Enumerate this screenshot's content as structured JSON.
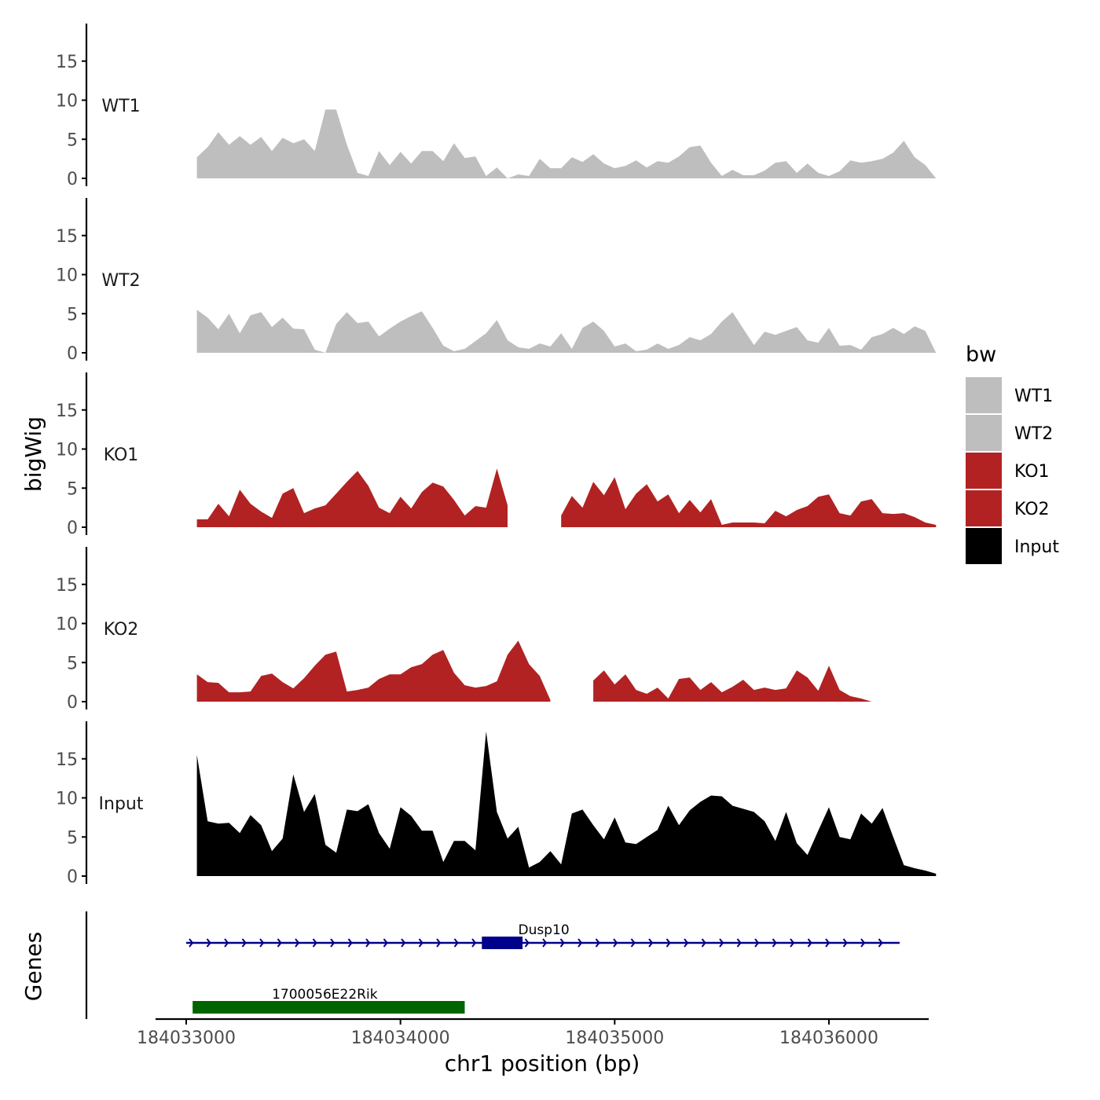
{
  "chart_data": {
    "type": "area",
    "ylabel": "bigWig",
    "genes_label": "Genes",
    "xlabel": "chr1 position (bp)",
    "xlim": [
      184032990,
      184036470
    ],
    "x_ticks": [
      184033000,
      184034000,
      184035000,
      184036000
    ],
    "x_tick_labels": [
      "184033000",
      "184034000",
      "184035000",
      "184036000"
    ],
    "ylim": [
      0,
      19.5
    ],
    "y_ticks": [
      0,
      5,
      10,
      15
    ],
    "y_tick_labels": [
      "0",
      "5",
      "10",
      "15"
    ],
    "legend": {
      "title": "bw",
      "position": "right",
      "entries": [
        {
          "label": "WT1",
          "color": "#bebebe"
        },
        {
          "label": "WT2",
          "color": "#bebebe"
        },
        {
          "label": "KO1",
          "color": "#b22222"
        },
        {
          "label": "KO2",
          "color": "#b22222"
        },
        {
          "label": "Input",
          "color": "#000000"
        }
      ]
    },
    "series": [
      {
        "name": "WT1",
        "color": "#bebebe",
        "x_start": 184033050,
        "x_step": 50,
        "values": [
          2.7,
          4,
          5.9,
          4.3,
          5.4,
          4.3,
          5.3,
          3.5,
          5.2,
          4.5,
          5,
          3.5,
          8.8,
          8.8,
          4.3,
          0.7,
          0.3,
          3.5,
          1.7,
          3.4,
          1.9,
          3.5,
          3.5,
          2.2,
          4.5,
          2.6,
          2.8,
          0.3,
          1.4,
          0,
          0.5,
          0.3,
          2.5,
          1.3,
          1.3,
          2.7,
          2.1,
          3.1,
          1.9,
          1.3,
          1.6,
          2.3,
          1.4,
          2.2,
          2,
          2.8,
          4,
          4.2,
          2,
          0.3,
          1.1,
          0.4,
          0.4,
          1,
          2,
          2.2,
          0.7,
          1.9,
          0.7,
          0.3,
          0.9,
          2.3,
          2,
          2.2,
          2.5,
          3.3,
          4.8,
          2.7,
          1.7,
          0
        ]
      },
      {
        "name": "WT2",
        "color": "#bebebe",
        "x_start": 184033050,
        "x_step": 50,
        "values": [
          5.5,
          4.5,
          3,
          5,
          2.5,
          4.8,
          5.2,
          3.3,
          4.5,
          3.1,
          3,
          0.4,
          0,
          3.7,
          5.2,
          3.8,
          4,
          2.1,
          3.1,
          4,
          4.7,
          5.3,
          3.2,
          0.9,
          0.2,
          0.5,
          1.5,
          2.5,
          4.2,
          1.6,
          0.7,
          0.5,
          1.2,
          0.8,
          2.5,
          0.5,
          3.2,
          4,
          2.8,
          0.8,
          1.2,
          0.2,
          0.4,
          1.2,
          0.5,
          1,
          2,
          1.6,
          2.4,
          4,
          5.2,
          3.1,
          1,
          2.7,
          2.3,
          2.8,
          3.3,
          1.6,
          1.3,
          3.2,
          0.9,
          1,
          0.4,
          2,
          2.4,
          3.2,
          2.4,
          3.4,
          2.8,
          0
        ]
      },
      {
        "name": "KO1",
        "color": "#b22222",
        "x_start": 184033050,
        "x_step": 50,
        "values": [
          1,
          1,
          3,
          1.4,
          4.8,
          3,
          2,
          1.2,
          4.3,
          5,
          1.8,
          2.4,
          2.8,
          4.3,
          5.8,
          7.2,
          5.3,
          2.5,
          1.8,
          3.9,
          2.4,
          4.5,
          5.7,
          5.2,
          3.5,
          1.5,
          2.7,
          2.5,
          7.5,
          2.8,
          null,
          null,
          null,
          null,
          1.5,
          4,
          2.5,
          5.8,
          4.1,
          6.4,
          2.3,
          4.3,
          5.5,
          3.3,
          4.2,
          1.8,
          3.5,
          1.9,
          3.6,
          0.3,
          0.6,
          0.6,
          0.6,
          0.5,
          2.1,
          1.4,
          2.2,
          2.7,
          3.9,
          4.2,
          1.8,
          1.5,
          3.3,
          3.6,
          1.8,
          1.7,
          1.8,
          1.3,
          0.6,
          0.3
        ]
      },
      {
        "name": "KO2",
        "color": "#b22222",
        "x_start": 184033050,
        "x_step": 50,
        "values": [
          3.5,
          2.5,
          2.4,
          1.2,
          1.2,
          1.3,
          3.3,
          3.6,
          2.5,
          1.7,
          3,
          4.6,
          6,
          6.4,
          1.3,
          1.5,
          1.8,
          2.9,
          3.5,
          3.5,
          4.4,
          4.8,
          6,
          6.6,
          3.7,
          2.1,
          1.8,
          2,
          2.6,
          6,
          7.8,
          4.8,
          3.3,
          0.2,
          null,
          null,
          null,
          2.7,
          4,
          2.2,
          3.5,
          1.5,
          1,
          1.8,
          0.4,
          2.9,
          3.1,
          1.5,
          2.5,
          1.2,
          1.9,
          2.8,
          1.5,
          1.8,
          1.5,
          1.7,
          4,
          3.1,
          1.4,
          4.6,
          1.5,
          0.7,
          0.4,
          0
        ]
      },
      {
        "name": "Input",
        "color": "#000000",
        "x_start": 184033050,
        "x_step": 50,
        "values": [
          15.5,
          7,
          6.7,
          6.8,
          5.5,
          7.8,
          6.5,
          3.2,
          4.8,
          13,
          8.2,
          10.5,
          4,
          3,
          8.5,
          8.3,
          9.2,
          5.5,
          3.5,
          8.8,
          7.7,
          5.8,
          5.8,
          1.8,
          4.5,
          4.5,
          3.3,
          18.5,
          8.2,
          4.8,
          6.3,
          1.1,
          1.8,
          3.2,
          1.5,
          8,
          8.5,
          6.5,
          4.7,
          7.5,
          4.3,
          4.1,
          5,
          5.9,
          9,
          6.5,
          8.4,
          9.5,
          10.3,
          10.2,
          9,
          8.6,
          8.2,
          7,
          4.5,
          8.2,
          4.2,
          2.7,
          5.8,
          8.8,
          5,
          4.7,
          8,
          6.7,
          8.7,
          5,
          1.4,
          1,
          0.7,
          0.3
        ]
      }
    ],
    "genes": [
      {
        "name": "Dusp10",
        "color": "#00008b",
        "strand": "+",
        "start": 184033000,
        "end": 184036330,
        "exon_start": 184034380,
        "exon_end": 184034570
      },
      {
        "name": "1700056E22Rik",
        "color": "#006400",
        "strand": "+",
        "start": 184033030,
        "end": 184034300,
        "exon_start": 184033030,
        "exon_end": 184034300
      }
    ]
  }
}
